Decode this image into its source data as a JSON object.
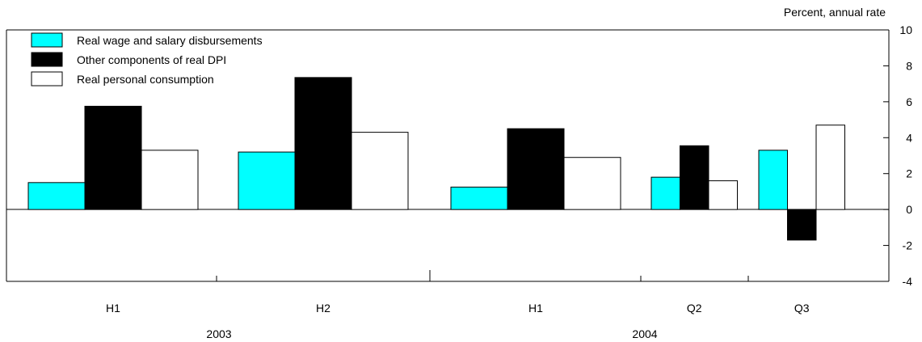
{
  "chart_data": {
    "type": "bar",
    "ylabel": "Percent, annual rate",
    "ylim": [
      -4,
      10
    ],
    "yticks": [
      -4,
      -2,
      0,
      2,
      4,
      6,
      8,
      10
    ],
    "categories": [
      "H1",
      "H2",
      "H1",
      "Q2",
      "Q3"
    ],
    "years": [
      {
        "label": "2003",
        "span": [
          0,
          1
        ]
      },
      {
        "label": "2004",
        "span": [
          2,
          4
        ]
      }
    ],
    "series": [
      {
        "name": "Real wage and salary disbursements",
        "color": "#00ffff",
        "values": [
          1.5,
          3.2,
          1.25,
          1.8,
          3.3
        ]
      },
      {
        "name": "Other components of real DPI",
        "color": "#000000",
        "values": [
          5.75,
          7.35,
          4.5,
          3.55,
          -1.7
        ]
      },
      {
        "name": "Real personal consumption",
        "color": "#ffffff",
        "values": [
          3.3,
          4.3,
          2.9,
          1.6,
          4.7
        ]
      }
    ]
  }
}
